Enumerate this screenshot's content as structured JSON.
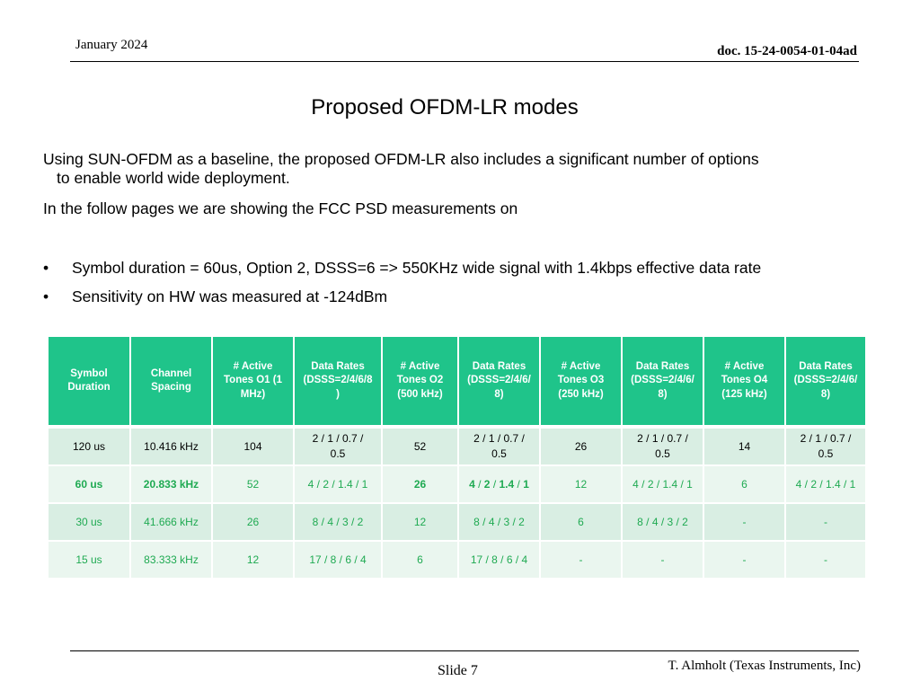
{
  "header": {
    "date": "January 2024",
    "doc_id": "doc. 15-24-0054-01-04ad"
  },
  "title": "Proposed OFDM-LR modes",
  "body": {
    "p1_line1": "Using SUN-OFDM as a baseline, the proposed OFDM-LR also includes a significant number of options",
    "p1_line2": "to enable world wide deployment.",
    "p2": "In the follow pages we are showing the FCC PSD measurements on",
    "bullet_char": "•",
    "bullets": [
      "Symbol duration = 60us, Option 2, DSSS=6 => 550KHz wide signal with 1.4kbps effective data rate",
      "Sensitivity on HW was measured at -124dBm"
    ]
  },
  "table": {
    "headers": [
      [
        "Symbol",
        "Duration"
      ],
      [
        "Channel",
        "Spacing"
      ],
      [
        "# Active",
        "Tones O1 (1",
        "MHz)"
      ],
      [
        "Data Rates",
        "(DSSS=2/4/6/8",
        ")"
      ],
      [
        "# Active",
        "Tones O2",
        "(500 kHz)"
      ],
      [
        "Data Rates",
        "(DSSS=2/4/6/",
        "8)"
      ],
      [
        "# Active",
        "Tones O3",
        "(250 kHz)"
      ],
      [
        "Data Rates",
        "(DSSS=2/4/6/",
        "8)"
      ],
      [
        "# Active",
        "Tones O4",
        "(125 kHz)"
      ],
      [
        "Data Rates",
        "(DSSS=2/4/6/",
        "8)"
      ]
    ],
    "rows": [
      {
        "symbol": "120 us",
        "spacing": "10.416 kHz",
        "t1": "104",
        "dr1": [
          "2 / 1 / 0.7 /",
          "0.5"
        ],
        "t2": "52",
        "dr2": [
          "2 / 1 / 0.7 /",
          "0.5"
        ],
        "t3": "26",
        "dr3": [
          "2 / 1 / 0.7 /",
          "0.5"
        ],
        "t4": "14",
        "dr4": [
          "2 / 1 / 0.7 /",
          "0.5"
        ]
      },
      {
        "symbol": "60 us",
        "spacing": "20.833 kHz",
        "t1": "52",
        "dr1": "4 / 2 / 1.4 / 1",
        "t2": "26",
        "dr2_parts": [
          "4",
          " / ",
          "2",
          " / ",
          "1.4",
          " / ",
          "1"
        ],
        "t3": "12",
        "dr3": "4 / 2 / 1.4 / 1",
        "t4": "6",
        "dr4": "4 / 2 / 1.4 / 1"
      },
      {
        "symbol": "30 us",
        "spacing": "41.666 kHz",
        "t1": "26",
        "dr1": "8 / 4 / 3 / 2",
        "t2": "12",
        "dr2": "8 / 4 / 3 / 2",
        "t3": "6",
        "dr3": "8 / 4 / 3 / 2",
        "t4": "-",
        "dr4": "-"
      },
      {
        "symbol": "15 us",
        "spacing": "83.333 kHz",
        "t1": "12",
        "dr1": "17 / 8 / 6 / 4",
        "t2": "6",
        "dr2": "17 / 8 / 6 / 4",
        "t3": "-",
        "dr3": "-",
        "t4": "-",
        "dr4": "-"
      }
    ]
  },
  "footer": {
    "slide": "Slide 7",
    "author": "T. Almholt (Texas Instruments, Inc)"
  },
  "colors": {
    "header_bg": "#1fc48a",
    "row_text_green": "#1faa52",
    "row_bg_dark": "#d9eee3",
    "row_bg_light": "#eaf6ef"
  }
}
